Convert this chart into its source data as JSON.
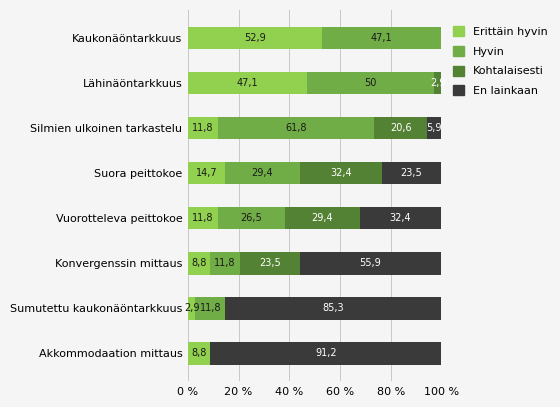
{
  "categories": [
    "Kaukonäöntarkkuus",
    "Lähinäöntarkkuus",
    "Silmien ulkoinen tarkastelu",
    "Suora peittokoe",
    "Vuorotteleva peittokoe",
    "Konvergenssin mittaus",
    "Sumutettu kaukonäöntarkkuus",
    "Akkommodaation mittaus"
  ],
  "series": {
    "Erittäin hyvin": [
      52.9,
      47.1,
      11.8,
      14.7,
      11.8,
      8.8,
      2.9,
      8.8
    ],
    "Hyvin": [
      47.1,
      50.0,
      61.8,
      29.4,
      26.5,
      11.8,
      11.8,
      0.0
    ],
    "Kohtalaisesti": [
      0.0,
      2.9,
      20.6,
      32.4,
      29.4,
      23.5,
      0.0,
      0.0
    ],
    "En lainkaan": [
      0.0,
      0.0,
      5.9,
      23.5,
      32.4,
      55.9,
      85.3,
      91.2
    ]
  },
  "colors": {
    "Erittäin hyvin": "#92d050",
    "Hyvin": "#70ad47",
    "Kohtalaisesti": "#548235",
    "En lainkaan": "#3a3a3a"
  },
  "bar_label_texts": {
    "Erittäin hyvin": [
      "52,9",
      "47,1",
      "11,8",
      "14,7",
      "11,8",
      "8,8",
      "2,9",
      "8,8"
    ],
    "Hyvin": [
      "47,1",
      "50",
      "61,8",
      "29,4",
      "26,5",
      "11,8",
      "11,8",
      null
    ],
    "Kohtalaisesti": [
      null,
      "2,9",
      "20,6",
      "32,4",
      "29,4",
      "23,5",
      null,
      null
    ],
    "En lainkaan": [
      null,
      null,
      "5,9",
      "23,5",
      "32,4",
      "55,9",
      "85,3",
      "91,2"
    ]
  },
  "min_width_for_label": {
    "Erittäin hyvin": [
      5,
      5,
      5,
      5,
      5,
      5,
      2,
      5
    ],
    "Hyvin": [
      5,
      5,
      5,
      5,
      5,
      5,
      5,
      0
    ],
    "Kohtalaisesti": [
      0,
      2,
      5,
      5,
      5,
      5,
      0,
      0
    ],
    "En lainkaan": [
      0,
      0,
      4,
      5,
      5,
      5,
      5,
      5
    ]
  },
  "xlim": [
    0,
    100
  ],
  "xticks": [
    0,
    20,
    40,
    60,
    80,
    100
  ],
  "xticklabels": [
    "0 %",
    "20 %",
    "40 %",
    "60 %",
    "80 %",
    "100 %"
  ],
  "legend_order": [
    "Erittäin hyvin",
    "Hyvin",
    "Kohtalaisesti",
    "En lainkaan"
  ],
  "bar_height": 0.5,
  "label_fontsize": 7,
  "tick_fontsize": 8,
  "legend_fontsize": 8,
  "background_color": "#f5f5f5",
  "grid_color": "#c8c8c8"
}
